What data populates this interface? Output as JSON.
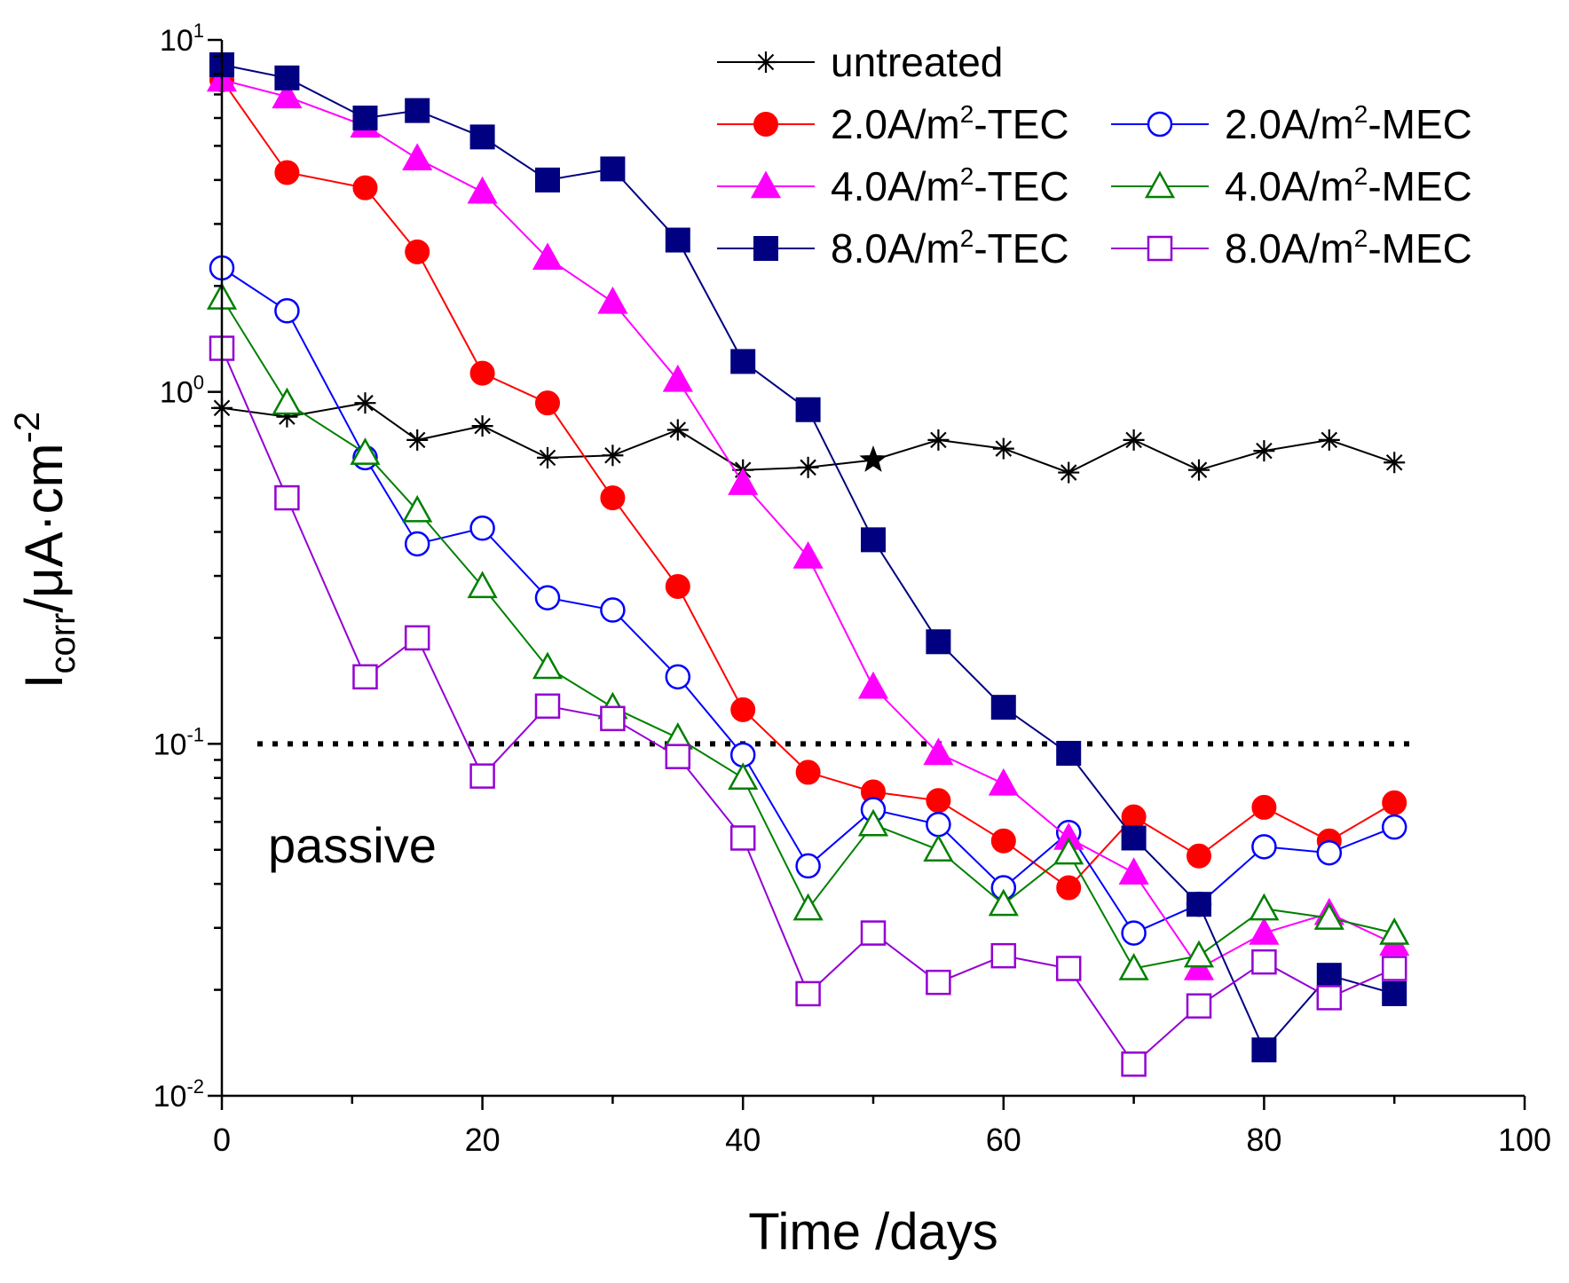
{
  "chart_data": {
    "type": "line",
    "x_scale": "linear",
    "y_scale": "log",
    "xlim": [
      0,
      100
    ],
    "ylim": [
      0.01,
      10
    ],
    "x_ticks": [
      0,
      20,
      40,
      60,
      80,
      100
    ],
    "x_tick_labels": [
      "0",
      "20",
      "40",
      "60",
      "80",
      "100"
    ],
    "y_ticks": [
      {
        "value": 10,
        "base": "10",
        "exp": "1"
      },
      {
        "value": 1,
        "base": "10",
        "exp": "0"
      },
      {
        "value": 0.1,
        "base": "10",
        "exp": "-1"
      },
      {
        "value": 0.01,
        "base": "10",
        "exp": "-2"
      }
    ],
    "xlabel": "Time /days",
    "ylabel": {
      "main": "I",
      "sub": "corr",
      "mid": "/μA·cm",
      "sup": "-2"
    },
    "threshold": {
      "value": 0.1,
      "style": "dotted",
      "label": "passive"
    },
    "highlight": {
      "series": "untreated",
      "x": 50,
      "value": 0.64,
      "marker": "star"
    },
    "series": [
      {
        "name": "untreated",
        "legend_label": "untreated",
        "color": "#000000",
        "marker": "asterisk",
        "x": [
          0,
          5,
          11,
          15,
          20,
          25,
          30,
          35,
          40,
          45,
          50,
          55,
          60,
          65,
          70,
          75,
          80,
          85,
          90
        ],
        "y": [
          0.9,
          0.85,
          0.93,
          0.73,
          0.8,
          0.65,
          0.66,
          0.78,
          0.6,
          0.61,
          0.64,
          0.73,
          0.69,
          0.59,
          0.73,
          0.6,
          0.68,
          0.73,
          0.63
        ]
      },
      {
        "name": "2.0A/m2-TEC",
        "legend_label": {
          "a": "2.0A/m",
          "sup": "2",
          "b": "-TEC"
        },
        "color": "#ff0000",
        "marker": "circle-filled",
        "x": [
          0,
          5,
          11,
          15,
          20,
          25,
          30,
          35,
          40,
          45,
          50,
          55,
          60,
          65,
          70,
          75,
          80,
          85,
          90
        ],
        "y": [
          7.7,
          4.2,
          3.8,
          2.5,
          1.13,
          0.93,
          0.5,
          0.28,
          0.125,
          0.083,
          0.073,
          0.069,
          0.053,
          0.039,
          0.062,
          0.048,
          0.066,
          0.053,
          0.068
        ]
      },
      {
        "name": "2.0A/m2-MEC",
        "legend_label": {
          "a": "2.0A/m",
          "sup": "2",
          "b": "-MEC"
        },
        "color": "#0000ff",
        "marker": "circle-open",
        "x": [
          0,
          5,
          11,
          15,
          20,
          25,
          30,
          35,
          40,
          45,
          50,
          55,
          60,
          65,
          70,
          75,
          80,
          85,
          90
        ],
        "y": [
          2.25,
          1.7,
          0.65,
          0.37,
          0.41,
          0.26,
          0.24,
          0.155,
          0.093,
          0.045,
          0.065,
          0.059,
          0.039,
          0.056,
          0.029,
          0.035,
          0.051,
          0.049,
          0.058
        ]
      },
      {
        "name": "4.0A/m2-TEC",
        "legend_label": {
          "a": "4.0A/m",
          "sup": "2",
          "b": "-TEC"
        },
        "color": "#ff00ff",
        "marker": "triangle-filled",
        "x": [
          0,
          5,
          11,
          15,
          20,
          25,
          30,
          35,
          40,
          45,
          50,
          55,
          60,
          65,
          70,
          75,
          80,
          85,
          90
        ],
        "y": [
          7.7,
          6.9,
          5.7,
          4.6,
          3.7,
          2.4,
          1.8,
          1.08,
          0.55,
          0.34,
          0.145,
          0.094,
          0.077,
          0.054,
          0.043,
          0.023,
          0.029,
          0.033,
          0.027
        ]
      },
      {
        "name": "4.0A/m2-MEC",
        "legend_label": {
          "a": "4.0A/m",
          "sup": "2",
          "b": "-MEC"
        },
        "color": "#008000",
        "marker": "triangle-open",
        "x": [
          0,
          5,
          11,
          15,
          20,
          25,
          30,
          35,
          40,
          45,
          50,
          55,
          60,
          65,
          70,
          75,
          80,
          85,
          90
        ],
        "y": [
          1.85,
          0.93,
          0.67,
          0.46,
          0.28,
          0.165,
          0.127,
          0.104,
          0.08,
          0.034,
          0.059,
          0.05,
          0.035,
          0.049,
          0.023,
          0.025,
          0.034,
          0.032,
          0.029
        ]
      },
      {
        "name": "8.0A/m2-TEC",
        "legend_label": {
          "a": "8.0A/m",
          "sup": "2",
          "b": "-TEC"
        },
        "color": "#000080",
        "marker": "square-filled",
        "x": [
          0,
          5,
          11,
          15,
          20,
          25,
          30,
          35,
          40,
          45,
          50,
          55,
          60,
          65,
          70,
          75,
          80,
          85,
          90
        ],
        "y": [
          8.5,
          7.8,
          6.0,
          6.3,
          5.3,
          4.0,
          4.3,
          2.7,
          1.22,
          0.89,
          0.38,
          0.195,
          0.127,
          0.094,
          0.054,
          0.035,
          0.0135,
          0.022,
          0.0195
        ]
      },
      {
        "name": "8.0A/m2-MEC",
        "legend_label": {
          "a": "8.0A/m",
          "sup": "2",
          "b": "-MEC"
        },
        "color": "#9400d3",
        "marker": "square-open",
        "x": [
          0,
          5,
          11,
          15,
          20,
          25,
          30,
          35,
          40,
          45,
          50,
          55,
          60,
          65,
          70,
          75,
          80,
          85,
          90
        ],
        "y": [
          1.33,
          0.5,
          0.155,
          0.2,
          0.081,
          0.128,
          0.118,
          0.092,
          0.054,
          0.0195,
          0.029,
          0.021,
          0.025,
          0.023,
          0.0123,
          0.018,
          0.024,
          0.019,
          0.023
        ]
      }
    ]
  }
}
